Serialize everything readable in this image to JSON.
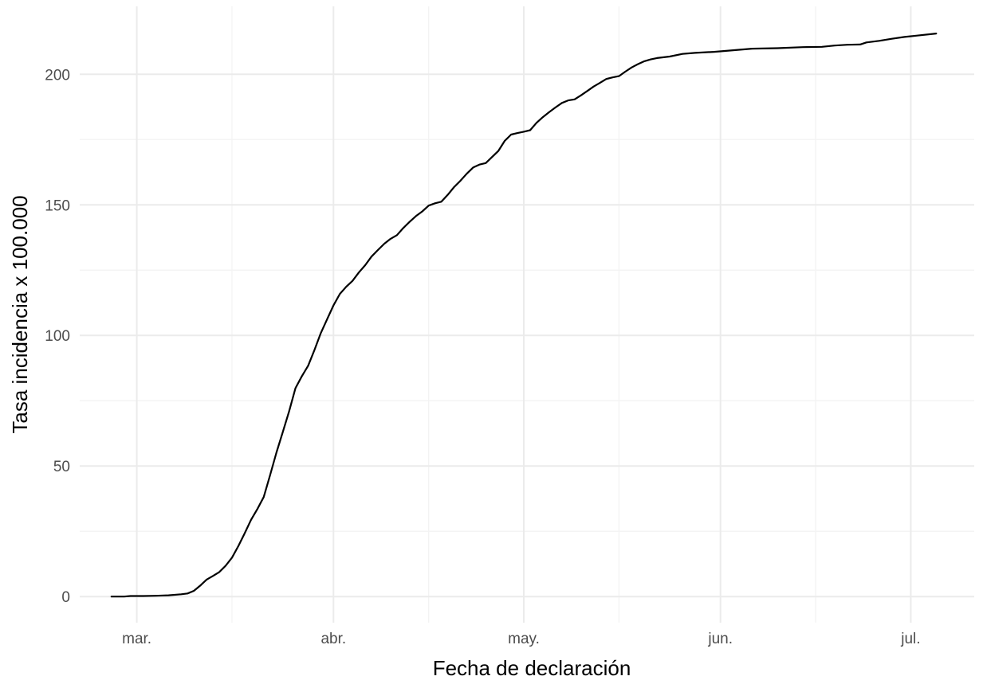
{
  "chart_data": {
    "type": "line",
    "title": "",
    "xlabel": "Fecha de declaración",
    "ylabel": "Tasa incidencia x 100.000",
    "x_axis_type": "date",
    "xlim": [
      "2020-02-21",
      "2020-07-11"
    ],
    "ylim": [
      -10,
      226
    ],
    "x_ticks": [
      {
        "date": "2020-03-01",
        "label": "mar."
      },
      {
        "date": "2020-04-01",
        "label": "abr."
      },
      {
        "date": "2020-05-01",
        "label": "may."
      },
      {
        "date": "2020-06-01",
        "label": "jun."
      },
      {
        "date": "2020-07-01",
        "label": "jul."
      }
    ],
    "x_minor_ticks": [
      "2020-03-16",
      "2020-04-16",
      "2020-05-16",
      "2020-06-16"
    ],
    "y_ticks": [
      0,
      50,
      100,
      150,
      200
    ],
    "y_minor_ticks": [
      25,
      75,
      125,
      175
    ],
    "grid": true,
    "legend": "none",
    "series": [
      {
        "color": "#000000",
        "points": [
          [
            "2020-02-26",
            0
          ],
          [
            "2020-02-28",
            0
          ],
          [
            "2020-02-29",
            0.2
          ],
          [
            "2020-03-02",
            0.2
          ],
          [
            "2020-03-04",
            0.3
          ],
          [
            "2020-03-06",
            0.5
          ],
          [
            "2020-03-08",
            0.9
          ],
          [
            "2020-03-09",
            1.2
          ],
          [
            "2020-03-10",
            2.2
          ],
          [
            "2020-03-11",
            4.2
          ],
          [
            "2020-03-12",
            6.5
          ],
          [
            "2020-03-13",
            7.9
          ],
          [
            "2020-03-14",
            9.4
          ],
          [
            "2020-03-15",
            11.8
          ],
          [
            "2020-03-16",
            14.9
          ],
          [
            "2020-03-17",
            19.3
          ],
          [
            "2020-03-18",
            24.2
          ],
          [
            "2020-03-19",
            29.4
          ],
          [
            "2020-03-20",
            33.5
          ],
          [
            "2020-03-21",
            38.1
          ],
          [
            "2020-03-22",
            46.4
          ],
          [
            "2020-03-23",
            55.1
          ],
          [
            "2020-03-24",
            62.9
          ],
          [
            "2020-03-25",
            70.9
          ],
          [
            "2020-03-26",
            79.8
          ],
          [
            "2020-03-27",
            84.3
          ],
          [
            "2020-03-28",
            88.4
          ],
          [
            "2020-03-29",
            94.4
          ],
          [
            "2020-03-30",
            100.9
          ],
          [
            "2020-03-31",
            106.2
          ],
          [
            "2020-04-01",
            111.5
          ],
          [
            "2020-04-02",
            115.9
          ],
          [
            "2020-04-03",
            118.6
          ],
          [
            "2020-04-04",
            120.9
          ],
          [
            "2020-04-05",
            124.1
          ],
          [
            "2020-04-06",
            126.9
          ],
          [
            "2020-04-07",
            130.2
          ],
          [
            "2020-04-08",
            132.7
          ],
          [
            "2020-04-09",
            135.1
          ],
          [
            "2020-04-10",
            137.0
          ],
          [
            "2020-04-11",
            138.4
          ],
          [
            "2020-04-12",
            141.1
          ],
          [
            "2020-04-13",
            143.5
          ],
          [
            "2020-04-14",
            145.7
          ],
          [
            "2020-04-15",
            147.5
          ],
          [
            "2020-04-16",
            149.7
          ],
          [
            "2020-04-17",
            150.6
          ],
          [
            "2020-04-18",
            151.2
          ],
          [
            "2020-04-19",
            153.8
          ],
          [
            "2020-04-20",
            156.8
          ],
          [
            "2020-04-21",
            159.2
          ],
          [
            "2020-04-22",
            161.9
          ],
          [
            "2020-04-23",
            164.3
          ],
          [
            "2020-04-24",
            165.4
          ],
          [
            "2020-04-25",
            166.0
          ],
          [
            "2020-04-26",
            168.3
          ],
          [
            "2020-04-27",
            170.7
          ],
          [
            "2020-04-28",
            174.5
          ],
          [
            "2020-04-29",
            176.9
          ],
          [
            "2020-04-30",
            177.5
          ],
          [
            "2020-05-01",
            178.0
          ],
          [
            "2020-05-02",
            178.6
          ],
          [
            "2020-05-03",
            181.4
          ],
          [
            "2020-05-04",
            183.6
          ],
          [
            "2020-05-05",
            185.5
          ],
          [
            "2020-05-06",
            187.3
          ],
          [
            "2020-05-07",
            189.0
          ],
          [
            "2020-05-08",
            190.0
          ],
          [
            "2020-05-09",
            190.4
          ],
          [
            "2020-05-10",
            191.9
          ],
          [
            "2020-05-11",
            193.6
          ],
          [
            "2020-05-12",
            195.3
          ],
          [
            "2020-05-13",
            196.7
          ],
          [
            "2020-05-14",
            198.2
          ],
          [
            "2020-05-15",
            198.8
          ],
          [
            "2020-05-16",
            199.3
          ],
          [
            "2020-05-17",
            201.0
          ],
          [
            "2020-05-18",
            202.6
          ],
          [
            "2020-05-19",
            203.9
          ],
          [
            "2020-05-20",
            205.0
          ],
          [
            "2020-05-21",
            205.7
          ],
          [
            "2020-05-22",
            206.2
          ],
          [
            "2020-05-24",
            206.8
          ],
          [
            "2020-05-26",
            207.8
          ],
          [
            "2020-05-28",
            208.2
          ],
          [
            "2020-05-31",
            208.6
          ],
          [
            "2020-06-03",
            209.2
          ],
          [
            "2020-06-06",
            209.8
          ],
          [
            "2020-06-10",
            210.0
          ],
          [
            "2020-06-14",
            210.4
          ],
          [
            "2020-06-17",
            210.5
          ],
          [
            "2020-06-19",
            211.0
          ],
          [
            "2020-06-21",
            211.3
          ],
          [
            "2020-06-23",
            211.4
          ],
          [
            "2020-06-24",
            212.2
          ],
          [
            "2020-06-26",
            212.8
          ],
          [
            "2020-06-28",
            213.6
          ],
          [
            "2020-06-30",
            214.3
          ],
          [
            "2020-07-02",
            214.8
          ],
          [
            "2020-07-05",
            215.6
          ]
        ]
      }
    ]
  }
}
